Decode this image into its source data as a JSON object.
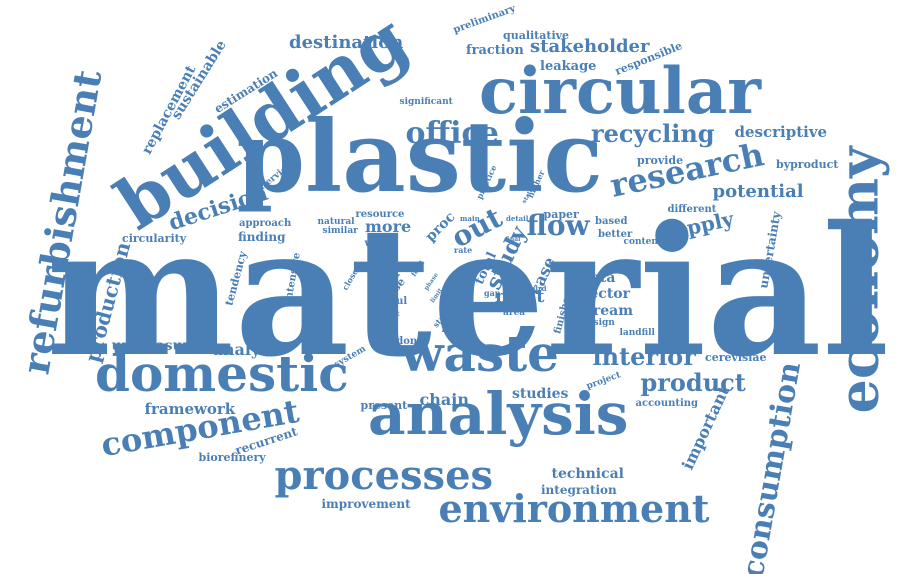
{
  "palette": {
    "word": "#4a7fb5",
    "background": "#ffffff"
  },
  "words": [
    "material",
    "plastic",
    "building",
    "circular",
    "economy",
    "analysis",
    "waste",
    "domestic",
    "refurbishment",
    "environment",
    "processes",
    "component",
    "consumption",
    "research",
    "office",
    "recycling",
    "destination",
    "flow",
    "out",
    "interior",
    "product",
    "potential",
    "supply",
    "decision",
    "stakeholder",
    "fraction",
    "leakage",
    "descriptive",
    "production",
    "unmeasured",
    "analyse",
    "framework",
    "chain",
    "present",
    "studies",
    "technical",
    "integration",
    "improvement",
    "recurrent",
    "biorefinery",
    "important",
    "sustainable",
    "replacement",
    "estimation",
    "preliminary",
    "qualitative",
    "responsible",
    "significant",
    "byproduct",
    "provide",
    "different",
    "uncertainty",
    "more",
    "finding",
    "approach",
    "circularity",
    "resource",
    "natural",
    "similar",
    "work",
    "proc",
    "study",
    "data",
    "sector",
    "stream",
    "concept",
    "most",
    "area",
    "design",
    "landfill",
    "fixture",
    "london",
    "system",
    "project",
    "accounting",
    "cerevisiae",
    "tendency",
    "intensive",
    "interview",
    "useful",
    "based",
    "better",
    "content",
    "paper",
    "case",
    "finishes",
    "gap",
    "total",
    "share",
    "reuse",
    "rate",
    "main",
    "detail",
    "practice",
    "higher",
    "fitting",
    "closed",
    "result",
    "third",
    "stage",
    "food",
    "phase",
    "limit",
    "final",
    "state",
    "other"
  ]
}
